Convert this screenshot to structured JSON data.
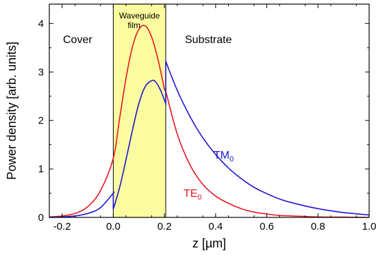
{
  "chart_data": {
    "type": "line",
    "title": "",
    "xlabel": "z [µm]",
    "ylabel": "Power density [arb. units]",
    "xlim": [
      -0.25,
      1.0
    ],
    "ylim": [
      0,
      4.4
    ],
    "xticks": [
      -0.2,
      0.0,
      0.2,
      0.4,
      0.6,
      0.8,
      1.0
    ],
    "xtick_labels": [
      "-0.2",
      "0.0",
      "0.2",
      "0.4",
      "0.6",
      "0.8",
      "1.0"
    ],
    "yticks": [
      0,
      1,
      2,
      3,
      4
    ],
    "ytick_labels": [
      "0",
      "1",
      "2",
      "3",
      "4"
    ],
    "grid": false,
    "film_region": {
      "x_start": 0.0,
      "x_end": 0.205,
      "fill_color": "#fbfba0",
      "label_line1": "Waveguide",
      "label_line2": "film"
    },
    "region_labels": {
      "cover": "Cover",
      "substrate": "Substrate"
    },
    "series": [
      {
        "name_main": "TE",
        "name_sub": "0",
        "color": "#e8141e",
        "x": [
          -0.25,
          -0.2,
          -0.15,
          -0.1,
          -0.05,
          0.0,
          0.025,
          0.05,
          0.075,
          0.1,
          0.125,
          0.15,
          0.175,
          0.2,
          0.205,
          0.25,
          0.3,
          0.35,
          0.4,
          0.45,
          0.5,
          0.55,
          0.6,
          0.65,
          0.7,
          0.8,
          0.9,
          1.0
        ],
        "y": [
          0.01,
          0.03,
          0.08,
          0.22,
          0.55,
          1.22,
          2.05,
          2.88,
          3.52,
          3.88,
          3.95,
          3.72,
          3.25,
          2.65,
          2.6,
          1.72,
          1.08,
          0.68,
          0.44,
          0.29,
          0.18,
          0.11,
          0.07,
          0.04,
          0.03,
          0.01,
          0.005,
          0.0
        ]
      },
      {
        "name_main": "TM",
        "name_sub": "0",
        "color": "#1a14d2",
        "x": [
          -0.25,
          -0.2,
          -0.15,
          -0.1,
          -0.05,
          0.0,
          0.0,
          0.025,
          0.05,
          0.075,
          0.1,
          0.125,
          0.15,
          0.165,
          0.185,
          0.205,
          0.205,
          0.25,
          0.3,
          0.35,
          0.4,
          0.45,
          0.5,
          0.55,
          0.6,
          0.65,
          0.7,
          0.8,
          0.9,
          1.0
        ],
        "y": [
          0.0,
          0.01,
          0.03,
          0.08,
          0.2,
          0.5,
          0.17,
          0.62,
          1.2,
          1.8,
          2.35,
          2.7,
          2.82,
          2.8,
          2.62,
          2.35,
          3.22,
          2.62,
          2.08,
          1.64,
          1.3,
          1.02,
          0.8,
          0.62,
          0.49,
          0.38,
          0.3,
          0.18,
          0.1,
          0.05
        ]
      }
    ]
  }
}
